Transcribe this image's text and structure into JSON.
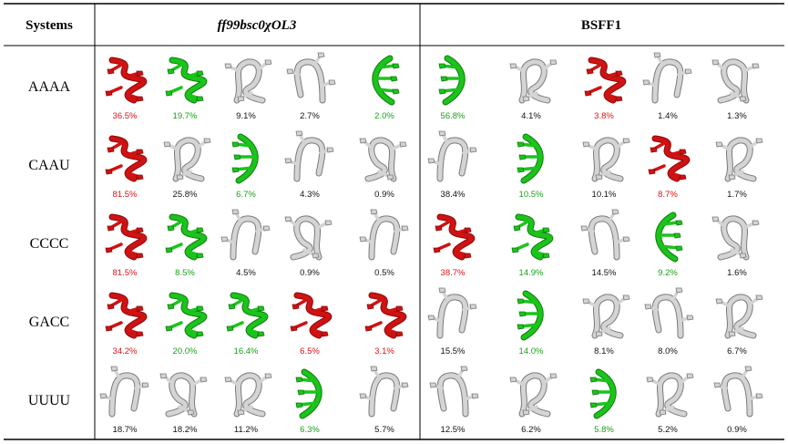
{
  "table": {
    "header": {
      "systems": "Systems",
      "group_a": "ff99bsc0χOL3",
      "group_b": "BSFF1"
    },
    "colors": {
      "red": "#dd1111",
      "green": "#18a018",
      "black": "#111111",
      "struct_red": "#d01212",
      "struct_green": "#1bc41b",
      "struct_white": "#d4d4d4"
    },
    "rows": [
      {
        "label": "AAAA",
        "a": [
          {
            "pct": "36.5%",
            "color": "red",
            "shape": "helix-red"
          },
          {
            "pct": "19.7%",
            "color": "green",
            "shape": "helix-green"
          },
          {
            "pct": "9.1%",
            "color": "black",
            "shape": "loop-white"
          },
          {
            "pct": "2.7%",
            "color": "black",
            "shape": "hook-white"
          },
          {
            "pct": "2.0%",
            "color": "green",
            "shape": "arc-green"
          }
        ],
        "b": [
          {
            "pct": "56.8%",
            "color": "green",
            "shape": "arc-green"
          },
          {
            "pct": "4.1%",
            "color": "black",
            "shape": "loop-white"
          },
          {
            "pct": "3.8%",
            "color": "red",
            "shape": "helix-red"
          },
          {
            "pct": "1.4%",
            "color": "black",
            "shape": "hook-white"
          },
          {
            "pct": "1.3%",
            "color": "black",
            "shape": "loop-white"
          }
        ]
      },
      {
        "label": "CAAU",
        "a": [
          {
            "pct": "81.5%",
            "color": "red",
            "shape": "helix-red"
          },
          {
            "pct": "25.8%",
            "color": "black",
            "shape": "loop-white"
          },
          {
            "pct": "6.7%",
            "color": "green",
            "shape": "arc-green"
          },
          {
            "pct": "4.3%",
            "color": "black",
            "shape": "hook-white"
          },
          {
            "pct": "0.9%",
            "color": "black",
            "shape": "loop-white"
          }
        ],
        "b": [
          {
            "pct": "38.4%",
            "color": "black",
            "shape": "hook-white"
          },
          {
            "pct": "10.5%",
            "color": "green",
            "shape": "arc-green"
          },
          {
            "pct": "10.1%",
            "color": "black",
            "shape": "loop-white"
          },
          {
            "pct": "8.7%",
            "color": "red",
            "shape": "helix-red"
          },
          {
            "pct": "1.7%",
            "color": "black",
            "shape": "loop-white"
          }
        ]
      },
      {
        "label": "CCCC",
        "a": [
          {
            "pct": "81.5%",
            "color": "red",
            "shape": "helix-red"
          },
          {
            "pct": "8.5%",
            "color": "green",
            "shape": "helix-green"
          },
          {
            "pct": "4.5%",
            "color": "black",
            "shape": "hook-white"
          },
          {
            "pct": "0.9%",
            "color": "black",
            "shape": "loop-white"
          },
          {
            "pct": "0.5%",
            "color": "black",
            "shape": "hook-white"
          }
        ],
        "b": [
          {
            "pct": "38.7%",
            "color": "red",
            "shape": "helix-red"
          },
          {
            "pct": "14.9%",
            "color": "green",
            "shape": "helix-green"
          },
          {
            "pct": "14.5%",
            "color": "black",
            "shape": "hook-white"
          },
          {
            "pct": "9.2%",
            "color": "green",
            "shape": "arc-green"
          },
          {
            "pct": "1.6%",
            "color": "black",
            "shape": "loop-white"
          }
        ]
      },
      {
        "label": "GACC",
        "a": [
          {
            "pct": "34.2%",
            "color": "red",
            "shape": "helix-red"
          },
          {
            "pct": "20.0%",
            "color": "green",
            "shape": "helix-green"
          },
          {
            "pct": "16.4%",
            "color": "green",
            "shape": "helix-green"
          },
          {
            "pct": "6.5%",
            "color": "red",
            "shape": "helix-red"
          },
          {
            "pct": "3.1%",
            "color": "red",
            "shape": "helix-red"
          }
        ],
        "b": [
          {
            "pct": "15.5%",
            "color": "black",
            "shape": "hook-white"
          },
          {
            "pct": "14.0%",
            "color": "green",
            "shape": "arc-green"
          },
          {
            "pct": "8.1%",
            "color": "black",
            "shape": "loop-white"
          },
          {
            "pct": "8.0%",
            "color": "black",
            "shape": "hook-white"
          },
          {
            "pct": "6.7%",
            "color": "black",
            "shape": "loop-white"
          }
        ]
      },
      {
        "label": "UUUU",
        "a": [
          {
            "pct": "18.7%",
            "color": "black",
            "shape": "hook-white"
          },
          {
            "pct": "18.2%",
            "color": "black",
            "shape": "loop-white"
          },
          {
            "pct": "11.2%",
            "color": "black",
            "shape": "loop-white"
          },
          {
            "pct": "6.3%",
            "color": "green",
            "shape": "arc-green"
          },
          {
            "pct": "5.7%",
            "color": "black",
            "shape": "hook-white"
          }
        ],
        "b": [
          {
            "pct": "12.5%",
            "color": "black",
            "shape": "hook-white"
          },
          {
            "pct": "6.2%",
            "color": "black",
            "shape": "loop-white"
          },
          {
            "pct": "5.8%",
            "color": "green",
            "shape": "arc-green"
          },
          {
            "pct": "5.2%",
            "color": "black",
            "shape": "loop-white"
          },
          {
            "pct": "0.9%",
            "color": "black",
            "shape": "hook-white"
          }
        ]
      }
    ]
  }
}
